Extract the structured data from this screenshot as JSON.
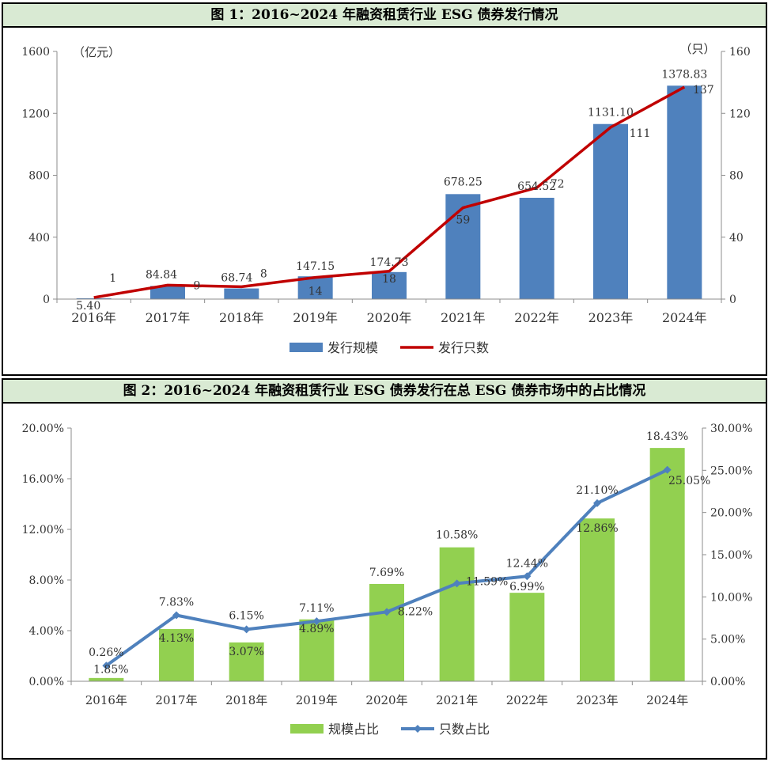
{
  "panel1": {
    "title": "图 1：2016~2024 年融资租赁行业 ESG 债券发行情况"
  },
  "panel2": {
    "title": "图 2：2016~2024 年融资租赁行业 ESG 债券发行在总 ESG 债券市场中的占比情况"
  },
  "chart_data": [
    {
      "type": "bar+line",
      "title": "图 1：2016~2024 年融资租赁行业 ESG 债券发行情况",
      "categories": [
        "2016年",
        "2017年",
        "2018年",
        "2019年",
        "2020年",
        "2021年",
        "2022年",
        "2023年",
        "2024年"
      ],
      "series": [
        {
          "name": "发行规模",
          "type": "bar",
          "axis": "left",
          "color": "#4f81bd",
          "values": [
            5.4,
            84.84,
            68.74,
            147.15,
            174.73,
            678.25,
            654.52,
            1131.1,
            1378.83
          ],
          "labels": [
            "5.40",
            "84.84",
            "68.74",
            "147.15",
            "174.73",
            "678.25",
            "654.52",
            "1131.10",
            "1378.83"
          ]
        },
        {
          "name": "发行只数",
          "type": "line",
          "axis": "right",
          "color": "#c00000",
          "values": [
            1,
            9,
            8,
            14,
            18,
            59,
            72,
            111,
            137
          ],
          "labels": [
            "1",
            "9",
            "8",
            "14",
            "18",
            "59",
            "72",
            "111",
            "137"
          ]
        }
      ],
      "ylabel_left": "（亿元）",
      "ylabel_right": "（只）",
      "ylim_left": [
        0,
        1600
      ],
      "ylim_right": [
        0,
        160
      ],
      "yticks_left": [
        "0",
        "400",
        "800",
        "1200",
        "1600"
      ],
      "yticks_right": [
        "0",
        "40",
        "80",
        "120",
        "160"
      ],
      "legend": "bottom-center"
    },
    {
      "type": "bar+line",
      "title": "图 2：2016~2024 年融资租赁行业 ESG 债券发行在总 ESG 债券市场中的占比情况",
      "categories": [
        "2016年",
        "2017年",
        "2018年",
        "2019年",
        "2020年",
        "2021年",
        "2022年",
        "2023年",
        "2024年"
      ],
      "series": [
        {
          "name": "规模占比",
          "type": "bar",
          "axis": "left",
          "color": "#92d050",
          "values": [
            0.26,
            4.13,
            3.07,
            4.89,
            7.69,
            10.58,
            6.99,
            12.86,
            18.43
          ],
          "labels": [
            "0.26%",
            "4.13%",
            "3.07%",
            "4.89%",
            "7.69%",
            "10.58%",
            "6.99%",
            "12.86%",
            "18.43%"
          ]
        },
        {
          "name": "只数占比",
          "type": "line",
          "axis": "right",
          "color": "#4f81bd",
          "values": [
            1.85,
            7.83,
            6.15,
            7.11,
            8.22,
            11.59,
            12.44,
            21.1,
            25.05
          ],
          "labels": [
            "1.85%",
            "7.83%",
            "6.15%",
            "7.11%",
            "8.22%",
            "11.59%",
            "12.44%",
            "21.10%",
            "25.05%"
          ]
        }
      ],
      "ylim_left": [
        0,
        20
      ],
      "ylim_right": [
        0,
        30
      ],
      "yticks_left": [
        "0.00%",
        "4.00%",
        "8.00%",
        "12.00%",
        "16.00%",
        "20.00%"
      ],
      "yticks_right": [
        "0.00%",
        "5.00%",
        "10.00%",
        "15.00%",
        "20.00%",
        "25.00%",
        "30.00%"
      ],
      "legend": "bottom-center"
    }
  ]
}
